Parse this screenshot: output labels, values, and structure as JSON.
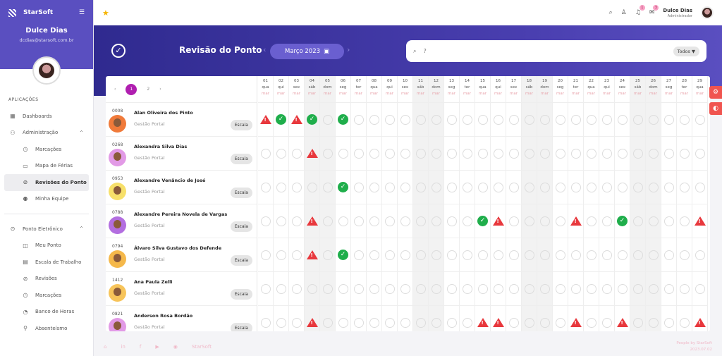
{
  "sidebar": {
    "brand": "StarSoft",
    "user_name": "Dulce Dias",
    "user_email": "dcdias@starsoft.com.br",
    "section": "APLICAÇÕES",
    "items": [
      {
        "label": "Dashboards",
        "icon": "▦",
        "type": "top"
      },
      {
        "label": "Administração",
        "icon": "⚇",
        "type": "top",
        "chevron": "^"
      },
      {
        "label": "Marcações",
        "icon": "◷",
        "type": "sub"
      },
      {
        "label": "Mapa de Férias",
        "icon": "▭",
        "type": "sub"
      },
      {
        "label": "Revisões do Ponto",
        "icon": "⊘",
        "type": "sub",
        "active": true
      },
      {
        "label": "Minha Equipe",
        "icon": "⚉",
        "type": "sub"
      }
    ],
    "items2": [
      {
        "label": "Ponto Eletrônico",
        "icon": "⊙",
        "type": "top",
        "chevron": "^"
      },
      {
        "label": "Meu Ponto",
        "icon": "◫",
        "type": "sub"
      },
      {
        "label": "Escala de Trabalho",
        "icon": "▤",
        "type": "sub"
      },
      {
        "label": "Revisões",
        "icon": "⊘",
        "type": "sub"
      },
      {
        "label": "Marcações",
        "icon": "◷",
        "type": "sub"
      },
      {
        "label": "Banco de Horas",
        "icon": "◔",
        "type": "sub"
      },
      {
        "label": "Absenteísmo",
        "icon": "⚲",
        "type": "sub"
      }
    ]
  },
  "topbar": {
    "user_name": "Dulce Dias",
    "user_role": "Administrador",
    "notifications": "1",
    "messages": "3"
  },
  "page": {
    "title": "Revisão do Ponto",
    "month": "Março 2023",
    "search_value": "?",
    "filter": "Todos"
  },
  "pager": {
    "prev": "‹",
    "pages": [
      "1",
      "2"
    ],
    "next": "›"
  },
  "days": {
    "nums": [
      "01",
      "02",
      "03",
      "04",
      "05",
      "06",
      "07",
      "08",
      "09",
      "10",
      "11",
      "12",
      "13",
      "14",
      "15",
      "16",
      "17",
      "18",
      "19",
      "20",
      "21",
      "22",
      "23",
      "24",
      "25",
      "26",
      "27",
      "28",
      "29"
    ],
    "weekdays": [
      "qua",
      "qui",
      "sex",
      "sáb",
      "dom",
      "seg",
      "ter",
      "qua",
      "qui",
      "sex",
      "sáb",
      "dom",
      "seg",
      "ter",
      "qua",
      "qui",
      "sex",
      "sáb",
      "dom",
      "seg",
      "ter",
      "qua",
      "qui",
      "sex",
      "sáb",
      "dom",
      "seg",
      "ter",
      "qua"
    ],
    "month": "mar"
  },
  "employees": [
    {
      "id": "0008",
      "name": "Alan Oliveira dos Pinto",
      "dept": "Gestão Portal",
      "button": "Escala",
      "color": "#f07a3a",
      "status": {
        "1": "warn",
        "2": "ok",
        "3": "warn",
        "4": "ok",
        "6": "ok"
      }
    },
    {
      "id": "0268",
      "name": "Alexandra Silva Dias",
      "dept": "Gestão Portal",
      "button": "Escala",
      "color": "#e29ae6",
      "status": {
        "4": "warn"
      }
    },
    {
      "id": "0953",
      "name": "Alexandre Venâncio de José",
      "dept": "Gestão Portal",
      "button": "Escala",
      "color": "#f7e06a",
      "status": {
        "6": "ok"
      }
    },
    {
      "id": "0788",
      "name": "Alexandre Pereira Novela de Vargas",
      "dept": "Gestão Portal",
      "button": "Escala",
      "color": "#b36ee0",
      "status": {
        "4": "warn",
        "15": "ok",
        "16": "warn",
        "21": "warn",
        "24": "ok",
        "29": "warn"
      }
    },
    {
      "id": "0794",
      "name": "Álvaro Silva Gustavo dos Defende",
      "dept": "Gestão Portal",
      "button": "Escala",
      "color": "#f5b84a",
      "status": {
        "4": "warn",
        "6": "ok"
      }
    },
    {
      "id": "1412",
      "name": "Ana Paula Zelli",
      "dept": "Gestão Portal",
      "button": "Escala",
      "color": "#f7c45a",
      "status": {}
    },
    {
      "id": "0821",
      "name": "Anderson Rosa Bordão",
      "dept": "Gestão Portal",
      "button": "Escala",
      "color": "#e29ae6",
      "status": {
        "4": "warn",
        "15": "warn",
        "16": "warn",
        "21": "warn",
        "24": "warn",
        "29": "warn"
      }
    }
  ],
  "footer": {
    "brand": "StarSoft",
    "copy1": "People by StarSoft",
    "copy2": "2023.07.02"
  },
  "colors": {
    "primary": "#5a4fc0",
    "ok": "#1fae4b",
    "warn": "#e8383d",
    "accent": "#b01fb0"
  }
}
